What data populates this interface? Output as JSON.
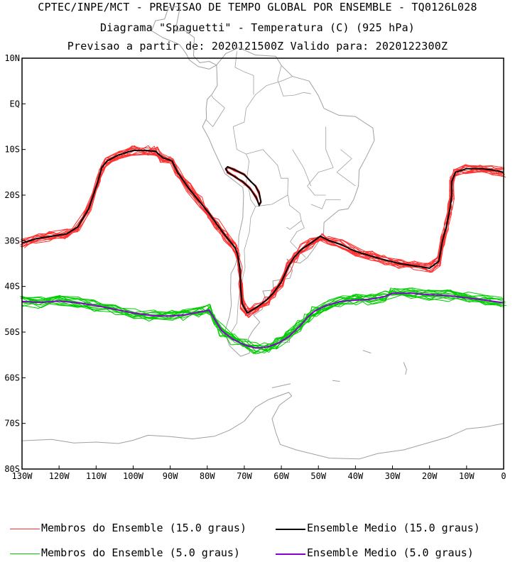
{
  "title": {
    "line1": "CPTEC/INPE/MCT - PREVISAO DE TEMPO GLOBAL POR ENSEMBLE - TQ0126L028",
    "line2": "Diagrama \"Spaguetti\" - Temperatura (C) (925 hPa)",
    "line3": "Previsao a partir de: 2020121500Z  Valido para: 2020122300Z"
  },
  "map": {
    "lon_range": [
      -130,
      0
    ],
    "lat_range": [
      -80,
      10
    ],
    "y_ticks": [
      "10N",
      "EQ",
      "10S",
      "20S",
      "30S",
      "40S",
      "50S",
      "60S",
      "70S",
      "80S"
    ],
    "x_ticks": [
      "130W",
      "120W",
      "110W",
      "100W",
      "90W",
      "80W",
      "70W",
      "60W",
      "50W",
      "40W",
      "30W",
      "20W",
      "10W",
      "0"
    ],
    "coastline_color": "#a0a0a0",
    "colors": {
      "members_15": "#ff3030",
      "mean_15": "#000000",
      "members_5": "#00cc00",
      "mean_5": "#8800cc"
    }
  },
  "legend": {
    "members_15": "Membros do Ensemble (15.0 graus)",
    "mean_15": "Ensemble Medio (15.0 graus)",
    "members_5": "Membros do Ensemble (5.0 graus)",
    "mean_5": "Ensemble Medio (5.0 graus)"
  }
}
